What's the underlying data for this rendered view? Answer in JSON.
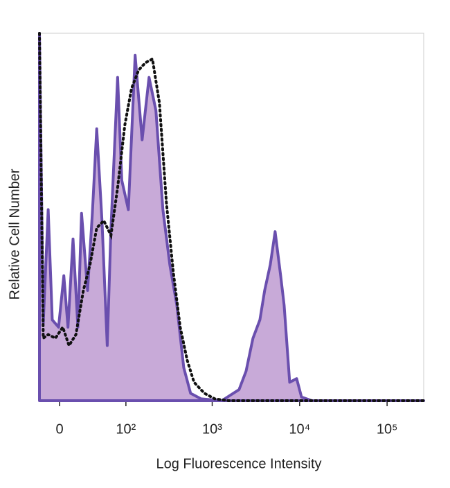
{
  "chart_data": {
    "type": "histogram-overlay",
    "xlabel": "Log Fluorescence Intensity",
    "ylabel": "Relative Cell Number",
    "xscale": "biexponential",
    "xlim": [
      -20,
      262144
    ],
    "ylim": [
      0,
      100
    ],
    "xticks": [
      0,
      {
        "value": 100,
        "label": "10²"
      },
      {
        "value": 1000,
        "label": "10³"
      },
      {
        "value": 10000,
        "label": "10⁴"
      },
      {
        "value": 100000,
        "label": "10⁵"
      }
    ],
    "series": [
      {
        "style": "filled",
        "color": "#6a4fae",
        "fill": "#c8aad8",
        "x": [
          -20,
          -16,
          -11,
          -7,
          -1,
          4,
          8,
          13,
          18,
          22,
          29,
          35,
          41,
          49,
          58,
          65,
          79,
          89,
          107,
          129,
          156,
          188,
          226,
          272,
          327,
          393,
          472,
          566,
          745,
          1289,
          2030,
          2437,
          2927,
          3514,
          3985,
          4615,
          5245,
          6066,
          6649,
          7693,
          9238,
          10501,
          13790,
          262144
        ],
        "values": [
          100,
          21,
          52,
          22,
          20,
          34,
          20,
          44,
          20,
          51,
          30,
          51,
          74,
          49,
          15,
          47,
          88,
          60,
          52,
          94,
          71,
          88,
          79,
          52,
          37,
          26,
          9,
          2,
          0.5,
          0,
          3,
          8,
          17,
          22,
          30,
          37,
          46,
          34,
          26,
          5,
          6,
          1,
          0,
          0
        ]
      },
      {
        "style": "dotted",
        "color": "#111111",
        "x": [
          -20,
          -16,
          -11,
          -4,
          3,
          9,
          16,
          24,
          32,
          41,
          52,
          65,
          79,
          97,
          117,
          142,
          171,
          206,
          248,
          298,
          358,
          430,
          517,
          620,
          815,
          1073,
          1544,
          262144
        ],
        "values": [
          100,
          17,
          18,
          17,
          20,
          15,
          18,
          30,
          37,
          47,
          49,
          45,
          58,
          75,
          85,
          90,
          92,
          93,
          81,
          54,
          35,
          20,
          11,
          5,
          2,
          0.5,
          0,
          0
        ]
      }
    ]
  }
}
